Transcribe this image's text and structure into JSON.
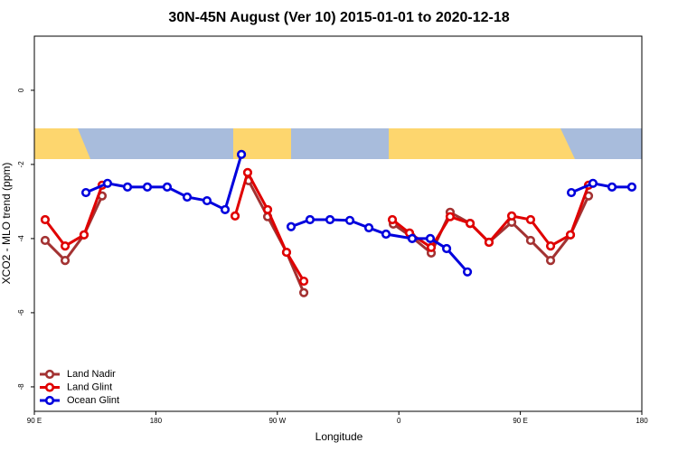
{
  "chart_data": {
    "type": "line",
    "title": "30N-45N August (Ver 10)   2015-01-01 to 2020-12-18",
    "x_label": "Longitude",
    "y_label": "XCO2 - MLO trend (ppm)",
    "xlim": [
      90,
      540
    ],
    "xticks": [
      {
        "value": 90,
        "label": "90 E"
      },
      {
        "value": 180,
        "label": "180"
      },
      {
        "value": 270,
        "label": "90 W"
      },
      {
        "value": 360,
        "label": "0"
      },
      {
        "value": 450,
        "label": "90 E"
      },
      {
        "value": 540,
        "label": "180"
      }
    ],
    "ylim": [
      -8.66,
      1.46
    ],
    "yticks": [
      0,
      -2,
      -4,
      -6,
      -8
    ],
    "legend": "bottom-left",
    "series": [
      {
        "name": "Land Nadir",
        "color": "#a33232",
        "x": [
          98.0,
          112.8,
          126.8,
          140.2,
          null,
          248.7,
          262.8,
          276.8,
          289.6,
          null,
          355.9,
          369.2,
          384.0,
          398.0,
          412.8,
          426.8,
          443.6,
          457.6,
          472.4,
          487.1,
          500.5
        ],
        "values": [
          -4.05,
          -4.59,
          -3.9,
          -2.85,
          null,
          -2.44,
          -3.41,
          -4.37,
          -5.46,
          null,
          -3.61,
          -3.95,
          -4.39,
          -3.29,
          -3.59,
          -4.1,
          -3.56,
          -4.05,
          -4.59,
          -3.9,
          -2.85
        ]
      },
      {
        "name": "Land Glint",
        "color": "#e00000",
        "x": [
          98.0,
          112.8,
          126.8,
          140.2,
          null,
          238.7,
          248.0,
          262.8,
          276.8,
          289.6,
          null,
          355.2,
          367.9,
          384.0,
          398.0,
          412.8,
          426.8,
          443.6,
          457.6,
          472.4,
          487.1,
          500.5
        ],
        "values": [
          -3.49,
          -4.2,
          -3.9,
          -2.56,
          null,
          -3.39,
          -2.22,
          -3.22,
          -4.37,
          -5.15,
          null,
          -3.49,
          -3.85,
          -4.24,
          -3.41,
          -3.59,
          -4.1,
          -3.39,
          -3.49,
          -4.2,
          -3.9,
          -2.56
        ]
      },
      {
        "name": "Ocean Glint",
        "color": "#0000dd",
        "x": [
          128.2,
          144.2,
          159.0,
          173.7,
          188.4,
          203.2,
          217.9,
          231.3,
          243.4,
          null,
          280.2,
          294.2,
          309.0,
          323.7,
          337.8,
          350.5,
          369.9,
          383.3,
          395.4,
          410.8,
          null,
          487.8,
          503.8,
          517.9,
          532.6
        ],
        "values": [
          -2.76,
          -2.51,
          -2.61,
          -2.61,
          -2.61,
          -2.88,
          -2.98,
          -3.22,
          -1.73,
          null,
          -3.68,
          -3.49,
          -3.49,
          -3.51,
          -3.71,
          -3.88,
          -4.0,
          -4.0,
          -4.27,
          -4.9,
          null,
          -2.76,
          -2.51,
          -2.61,
          -2.61
        ]
      }
    ]
  }
}
